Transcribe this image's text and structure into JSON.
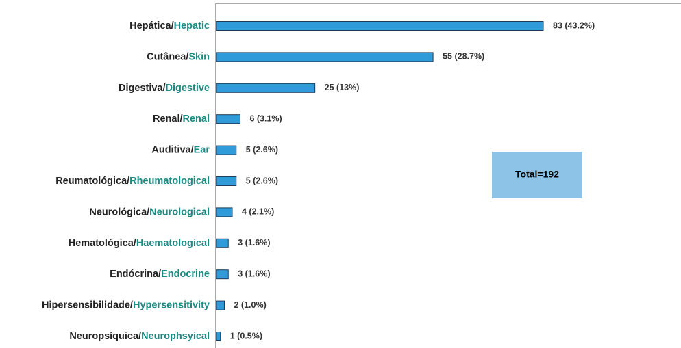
{
  "chart_data": {
    "type": "bar",
    "orientation": "horizontal",
    "categories": [
      "Hepática/Hepatic",
      "Cutânea/Skin",
      "Digestiva/Digestive",
      "Renal/Renal",
      "Auditiva/Ear",
      "Reumatológica/Rheumatological",
      "Neurológica/Neurological",
      "Hematológica/Haematological",
      "Endócrina/Endocrine",
      "Hipersensibilidade/Hypersensitivity",
      "Neuropsíquica/Neurophsyical"
    ],
    "values": [
      83,
      55,
      25,
      6,
      5,
      5,
      4,
      3,
      3,
      2,
      1
    ],
    "value_labels": [
      "83 (43.2%)",
      "55 (28.7%)",
      "25 (13%)",
      "6 (3.1%)",
      "5 (2.6%)",
      "5 (2.6%)",
      "4 (2.1%)",
      "3 (1.6%)",
      "3  (1.6%)",
      "2 (1.0%)",
      "1 (0.5%)"
    ],
    "color": "#2f9bd8",
    "annotation": "Total=192"
  }
}
